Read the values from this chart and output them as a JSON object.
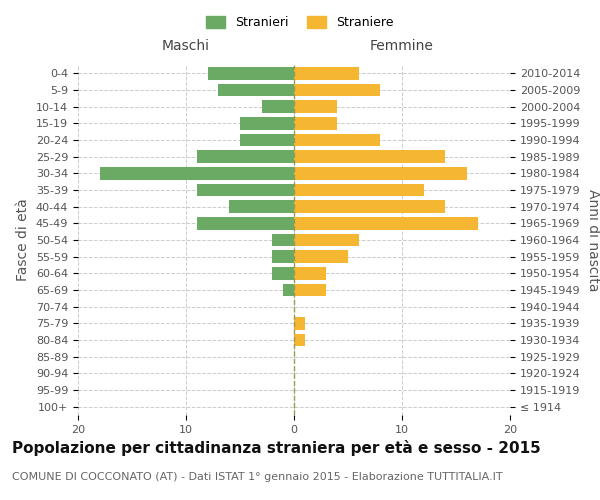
{
  "age_groups": [
    "0-4",
    "5-9",
    "10-14",
    "15-19",
    "20-24",
    "25-29",
    "30-34",
    "35-39",
    "40-44",
    "45-49",
    "50-54",
    "55-59",
    "60-64",
    "65-69",
    "70-74",
    "75-79",
    "80-84",
    "85-89",
    "90-94",
    "95-99",
    "100+"
  ],
  "birth_years": [
    "2010-2014",
    "2005-2009",
    "2000-2004",
    "1995-1999",
    "1990-1994",
    "1985-1989",
    "1980-1984",
    "1975-1979",
    "1970-1974",
    "1965-1969",
    "1960-1964",
    "1955-1959",
    "1950-1954",
    "1945-1949",
    "1940-1944",
    "1935-1939",
    "1930-1934",
    "1925-1929",
    "1920-1924",
    "1915-1919",
    "≤ 1914"
  ],
  "maschi": [
    8,
    7,
    3,
    5,
    5,
    9,
    18,
    9,
    6,
    9,
    2,
    2,
    2,
    1,
    0,
    0,
    0,
    0,
    0,
    0,
    0
  ],
  "femmine": [
    6,
    8,
    4,
    4,
    8,
    14,
    16,
    12,
    14,
    17,
    6,
    5,
    3,
    3,
    0,
    1,
    1,
    0,
    0,
    0,
    0
  ],
  "maschi_color": "#6aaa64",
  "femmine_color": "#f5b731",
  "background_color": "#ffffff",
  "grid_color": "#cccccc",
  "title": "Popolazione per cittadinanza straniera per età e sesso - 2015",
  "subtitle": "COMUNE DI COCCONATO (AT) - Dati ISTAT 1° gennaio 2015 - Elaborazione TUTTITALIA.IT",
  "ylabel_left": "Fasce di età",
  "ylabel_right": "Anni di nascita",
  "xlabel_left": "Maschi",
  "xlabel_right": "Femmine",
  "legend_stranieri": "Stranieri",
  "legend_straniere": "Straniere",
  "xlim": 20,
  "title_fontsize": 11,
  "subtitle_fontsize": 8,
  "axis_label_fontsize": 10,
  "tick_fontsize": 8
}
